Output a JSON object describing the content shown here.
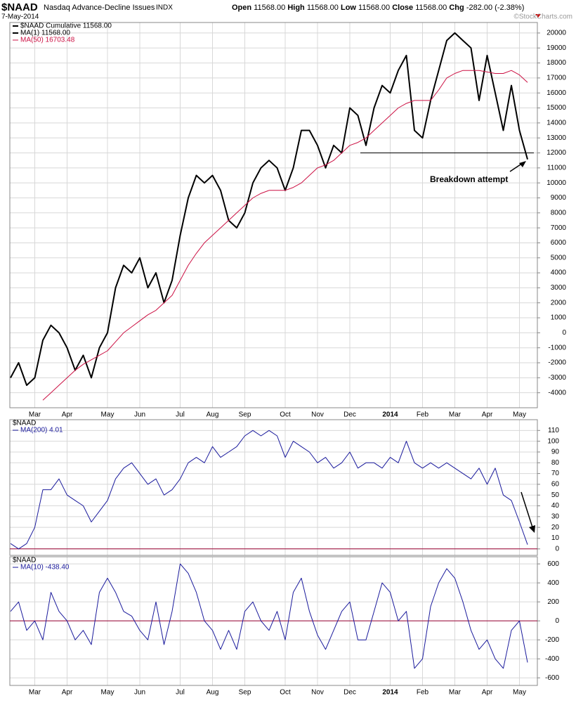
{
  "chart_data": [
    {
      "type": "line",
      "title": "$NAAD",
      "subtitle": "Nasdaq Advance-Decline Issues",
      "exchange": "INDX",
      "date": "7-May-2014",
      "quote": [
        {
          "label": "Open",
          "value": "11568.00"
        },
        {
          "label": "High",
          "value": "11568.00"
        },
        {
          "label": "Low",
          "value": "11568.00"
        },
        {
          "label": "Close",
          "value": "11568.00"
        },
        {
          "label": "Chg",
          "value": "-282.00 (-2.38%)"
        }
      ],
      "watermark": "©StockCharts.com",
      "legend_title": "$NAAD Cumulative 11568.00",
      "annotation": "Breakdown attempt",
      "hline": {
        "value": 12000,
        "color": "#000000"
      },
      "categories": [
        null,
        null,
        null,
        "Mar",
        null,
        null,
        null,
        "Apr",
        null,
        null,
        null,
        null,
        "May",
        null,
        null,
        null,
        "Jun",
        null,
        null,
        null,
        null,
        "Jul",
        null,
        null,
        null,
        "Aug",
        null,
        null,
        null,
        "Sep",
        null,
        null,
        null,
        null,
        "Oct",
        null,
        null,
        null,
        "Nov",
        null,
        null,
        null,
        "Dec",
        null,
        null,
        null,
        null,
        "2014",
        null,
        null,
        null,
        "Feb",
        null,
        null,
        null,
        "Mar",
        null,
        null,
        null,
        "Apr",
        null,
        null,
        null,
        "May",
        null
      ],
      "series": [
        {
          "name": "MA(1) 11568.00",
          "color": "#000000",
          "width": 2,
          "values": [
            -3000,
            -2000,
            -3500,
            -3000,
            -500,
            500,
            0,
            -1000,
            -2500,
            -1500,
            -3000,
            -1000,
            0,
            3000,
            4500,
            4000,
            5000,
            3000,
            4000,
            2000,
            3500,
            6500,
            9000,
            10500,
            10000,
            10500,
            9500,
            7500,
            7000,
            8000,
            10000,
            11000,
            11500,
            11000,
            9500,
            11000,
            13500,
            13500,
            12500,
            11000,
            12500,
            12000,
            15000,
            14500,
            12500,
            15000,
            16500,
            16000,
            17500,
            18500,
            13500,
            13000,
            15500,
            17500,
            19500,
            20000,
            19500,
            19000,
            15500,
            18500,
            16000,
            13500,
            16500,
            13500,
            11568
          ]
        },
        {
          "name": "MA(50) 16703.48",
          "color": "#cc1144",
          "width": 1,
          "values": [
            null,
            null,
            null,
            null,
            -4500,
            -4000,
            -3500,
            -3000,
            -2500,
            -2100,
            -1800,
            -1500,
            -1200,
            -600,
            0,
            400,
            800,
            1200,
            1500,
            2000,
            2500,
            3500,
            4500,
            5300,
            6000,
            6500,
            7000,
            7500,
            8000,
            8500,
            9000,
            9300,
            9500,
            9500,
            9500,
            9700,
            10000,
            10500,
            11000,
            11200,
            11500,
            12000,
            12500,
            12700,
            13000,
            13500,
            14000,
            14500,
            15000,
            15300,
            15500,
            15500,
            15500,
            16200,
            17000,
            17300,
            17500,
            17500,
            17500,
            17400,
            17300,
            17300,
            17500,
            17200,
            16703.48
          ]
        }
      ],
      "ylim": [
        -5000,
        20700
      ],
      "yticks": [
        -4000,
        -3000,
        -2000,
        -1000,
        0,
        1000,
        2000,
        3000,
        4000,
        5000,
        6000,
        7000,
        8000,
        9000,
        10000,
        11000,
        12000,
        13000,
        14000,
        15000,
        16000,
        17000,
        18000,
        19000,
        20000
      ],
      "grid": true
    },
    {
      "type": "line",
      "title": "$NAAD",
      "hline": {
        "value": 0,
        "color": "#990033"
      },
      "series": [
        {
          "name": "MA(200) 4.01",
          "color": "#1a1a9c",
          "width": 1,
          "values": [
            5,
            0,
            5,
            20,
            55,
            55,
            65,
            50,
            45,
            40,
            25,
            35,
            45,
            65,
            75,
            80,
            70,
            60,
            65,
            50,
            55,
            65,
            80,
            85,
            80,
            95,
            85,
            90,
            95,
            105,
            110,
            105,
            110,
            105,
            85,
            100,
            95,
            90,
            80,
            85,
            75,
            80,
            90,
            75,
            80,
            80,
            75,
            85,
            80,
            100,
            80,
            75,
            80,
            75,
            80,
            75,
            70,
            65,
            75,
            60,
            75,
            50,
            45,
            25,
            4.01
          ]
        }
      ],
      "ylim": [
        -6,
        120
      ],
      "yticks": [
        0,
        10,
        20,
        30,
        40,
        50,
        60,
        70,
        80,
        90,
        100,
        110
      ],
      "grid": true
    },
    {
      "type": "line",
      "title": "$NAAD",
      "hline": {
        "value": 0,
        "color": "#990033"
      },
      "categories": [
        null,
        null,
        null,
        "Mar",
        null,
        null,
        null,
        "Apr",
        null,
        null,
        null,
        null,
        "May",
        null,
        null,
        null,
        "Jun",
        null,
        null,
        null,
        null,
        "Jul",
        null,
        null,
        null,
        "Aug",
        null,
        null,
        null,
        "Sep",
        null,
        null,
        null,
        null,
        "Oct",
        null,
        null,
        null,
        "Nov",
        null,
        null,
        null,
        "Dec",
        null,
        null,
        null,
        null,
        "2014",
        null,
        null,
        null,
        "Feb",
        null,
        null,
        null,
        "Mar",
        null,
        null,
        null,
        "Apr",
        null,
        null,
        null,
        "May",
        null
      ],
      "series": [
        {
          "name": "MA(10) -438.40",
          "color": "#1a1a9c",
          "width": 1,
          "values": [
            100,
            200,
            -100,
            0,
            -200,
            300,
            100,
            0,
            -200,
            -100,
            -250,
            300,
            450,
            300,
            100,
            50,
            -100,
            -200,
            200,
            -250,
            100,
            600,
            500,
            300,
            0,
            -100,
            -300,
            -100,
            -300,
            100,
            200,
            0,
            -100,
            100,
            -200,
            300,
            450,
            100,
            -150,
            -300,
            -100,
            100,
            200,
            -200,
            -200,
            100,
            400,
            300,
            0,
            100,
            -500,
            -400,
            150,
            400,
            550,
            450,
            200,
            -100,
            -300,
            -200,
            -400,
            -500,
            -100,
            0,
            -438.4
          ]
        }
      ],
      "ylim": [
        -680,
        675
      ],
      "yticks": [
        -600,
        -400,
        -200,
        0,
        200,
        400,
        600
      ],
      "grid": true
    }
  ]
}
